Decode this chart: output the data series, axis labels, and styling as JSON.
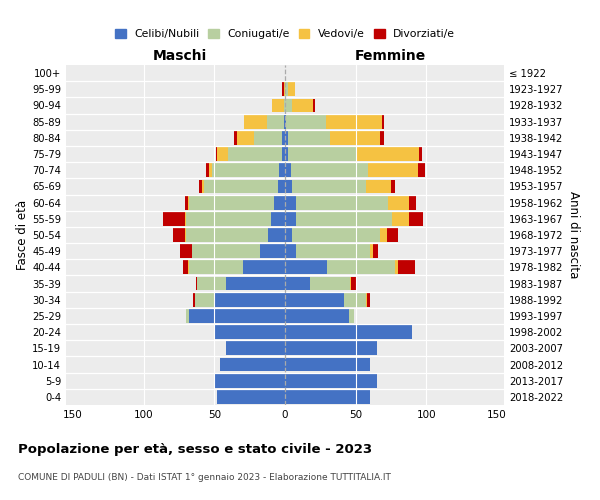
{
  "age_groups": [
    "0-4",
    "5-9",
    "10-14",
    "15-19",
    "20-24",
    "25-29",
    "30-34",
    "35-39",
    "40-44",
    "45-49",
    "50-54",
    "55-59",
    "60-64",
    "65-69",
    "70-74",
    "75-79",
    "80-84",
    "85-89",
    "90-94",
    "95-99",
    "100+"
  ],
  "birth_years": [
    "2018-2022",
    "2013-2017",
    "2008-2012",
    "2003-2007",
    "1998-2002",
    "1993-1997",
    "1988-1992",
    "1983-1987",
    "1978-1982",
    "1973-1977",
    "1968-1972",
    "1963-1967",
    "1958-1962",
    "1953-1957",
    "1948-1952",
    "1943-1947",
    "1938-1942",
    "1933-1937",
    "1928-1932",
    "1923-1927",
    "≤ 1922"
  ],
  "maschi": {
    "celibi": [
      48,
      50,
      46,
      42,
      50,
      68,
      50,
      42,
      30,
      18,
      12,
      10,
      8,
      5,
      4,
      2,
      2,
      1,
      0,
      0,
      0
    ],
    "coniugati": [
      0,
      0,
      0,
      0,
      0,
      2,
      14,
      20,
      38,
      48,
      58,
      60,
      60,
      52,
      48,
      38,
      20,
      12,
      1,
      0,
      0
    ],
    "vedovi": [
      0,
      0,
      0,
      0,
      0,
      0,
      0,
      0,
      1,
      0,
      1,
      1,
      1,
      2,
      2,
      8,
      12,
      16,
      8,
      1,
      0
    ],
    "divorziati": [
      0,
      0,
      0,
      0,
      0,
      0,
      1,
      1,
      3,
      8,
      8,
      15,
      2,
      2,
      2,
      1,
      2,
      0,
      0,
      1,
      0
    ]
  },
  "femmine": {
    "nubili": [
      60,
      65,
      60,
      65,
      90,
      45,
      42,
      18,
      30,
      8,
      5,
      8,
      8,
      5,
      4,
      2,
      2,
      1,
      0,
      0,
      0
    ],
    "coniugate": [
      0,
      0,
      0,
      0,
      0,
      4,
      15,
      28,
      48,
      52,
      62,
      68,
      65,
      52,
      55,
      48,
      30,
      28,
      5,
      2,
      0
    ],
    "vedove": [
      0,
      0,
      0,
      0,
      0,
      0,
      1,
      1,
      2,
      2,
      5,
      12,
      15,
      18,
      35,
      45,
      35,
      40,
      15,
      5,
      0
    ],
    "divorziate": [
      0,
      0,
      0,
      0,
      0,
      0,
      2,
      4,
      12,
      4,
      8,
      10,
      5,
      3,
      5,
      2,
      3,
      1,
      1,
      0,
      0
    ]
  },
  "colors": {
    "celibi": "#4472C4",
    "coniugati": "#b8cfa0",
    "vedovi": "#F5C242",
    "divorziati": "#C00000"
  },
  "xlim": 155,
  "title": "Popolazione per età, sesso e stato civile - 2023",
  "subtitle": "COMUNE DI PADULI (BN) - Dati ISTAT 1° gennaio 2023 - Elaborazione TUTTITALIA.IT",
  "ylabel_left": "Fasce di età",
  "ylabel_right": "Anni di nascita",
  "label_maschi": "Maschi",
  "label_femmine": "Femmine",
  "bg_color": "#ffffff",
  "plot_bg": "#ececec"
}
